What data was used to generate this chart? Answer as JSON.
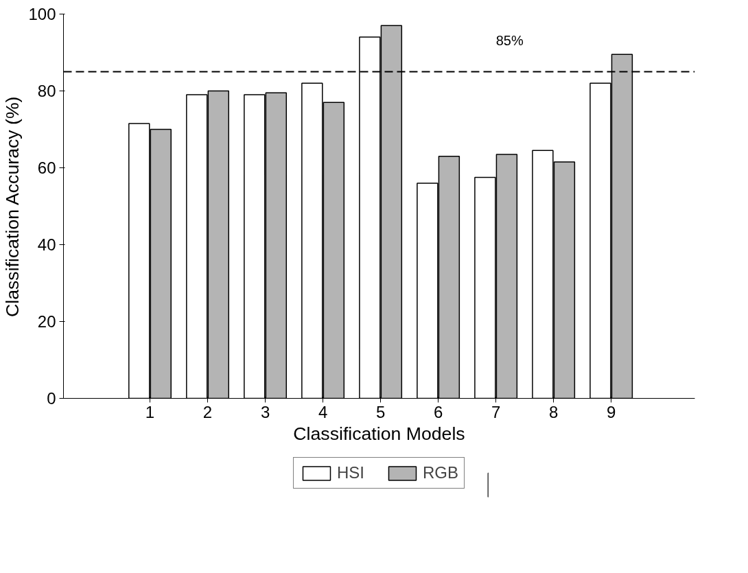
{
  "chart_data": {
    "type": "bar",
    "xlabel": "Classification Models",
    "ylabel": "Classification Accuracy (%)",
    "categories": [
      "1",
      "2",
      "3",
      "4",
      "5",
      "6",
      "7",
      "8",
      "9"
    ],
    "series": [
      {
        "name": "HSI",
        "color": "#ffffff",
        "values": [
          71.5,
          79,
          79,
          82,
          94,
          56,
          57.5,
          64.5,
          82
        ]
      },
      {
        "name": "RGB",
        "color": "#b4b4b4",
        "values": [
          70,
          80,
          79.5,
          77,
          97,
          63,
          63.5,
          61.5,
          89.5
        ]
      }
    ],
    "ylim": [
      0,
      100
    ],
    "yticks": [
      0,
      20,
      40,
      60,
      80,
      100
    ],
    "ref_lines": [
      {
        "axis": "y",
        "value": 85,
        "label": "85%",
        "line_style": "dashed",
        "color": "#000000"
      }
    ],
    "grid": false,
    "legend": "bottom"
  }
}
